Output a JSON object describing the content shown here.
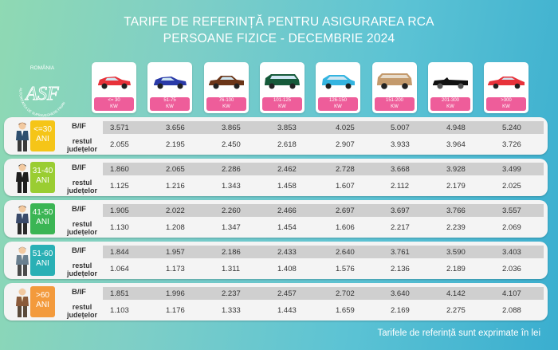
{
  "title_line1": "TARIFE DE REFERINȚĂ PENTRU ASIGURAREA RCA",
  "title_line2": "PERSOANE FIZICE - DECEMBRIE 2024",
  "logo": {
    "top_text": "ROMÂNIA",
    "monogram": "ASF",
    "arc_text": "AUTORITATEA DE SUPRAVEGHERE FINANCIARĂ"
  },
  "unit_kw": "KW",
  "cars": [
    {
      "range": "<= 30",
      "color": "#e8323a",
      "icon": "hatchback-icon"
    },
    {
      "range": "51-75",
      "color": "#2a3aa8",
      "icon": "hatchback-icon"
    },
    {
      "range": "76-100",
      "color": "#6b3518",
      "icon": "sedan-icon"
    },
    {
      "range": "101-125",
      "color": "#165a3a",
      "icon": "minivan-icon"
    },
    {
      "range": "126-150",
      "color": "#34b4e0",
      "icon": "compact-icon"
    },
    {
      "range": "151-200",
      "color": "#c49a6c",
      "icon": "suv-icon"
    },
    {
      "range": "201-300",
      "color": "#111111",
      "icon": "convertible-icon"
    },
    {
      "range": ">300",
      "color": "#e8323a",
      "icon": "sports-car-icon"
    }
  ],
  "range_badge_color": "#ee5d9a",
  "label_bif": "B/IF",
  "label_rest_1": "restul",
  "label_rest_2": "județelor",
  "age_groups": [
    {
      "age": "<=30",
      "unit": "ANI",
      "color": "#f5c518",
      "bif": [
        "3.571",
        "3.656",
        "3.865",
        "3.853",
        "4.025",
        "5.007",
        "4.948",
        "5.240"
      ],
      "rest": [
        "2.055",
        "2.195",
        "2.450",
        "2.618",
        "2.907",
        "3.933",
        "3.964",
        "3.726"
      ]
    },
    {
      "age": "31-40",
      "unit": "ANI",
      "color": "#9acd32",
      "bif": [
        "1.860",
        "2.065",
        "2.286",
        "2.462",
        "2.728",
        "3.668",
        "3.928",
        "3.499"
      ],
      "rest": [
        "1.125",
        "1.216",
        "1.343",
        "1.458",
        "1.607",
        "2.112",
        "2.179",
        "2.025"
      ]
    },
    {
      "age": "41-50",
      "unit": "ANI",
      "color": "#3bb554",
      "bif": [
        "1.905",
        "2.022",
        "2.260",
        "2.466",
        "2.697",
        "3.697",
        "3.766",
        "3.557"
      ],
      "rest": [
        "1.130",
        "1.208",
        "1.347",
        "1.454",
        "1.606",
        "2.217",
        "2.239",
        "2.069"
      ]
    },
    {
      "age": "51-60",
      "unit": "ANI",
      "color": "#2ab0b5",
      "bif": [
        "1.844",
        "1.957",
        "2.186",
        "2.433",
        "2.640",
        "3.761",
        "3.590",
        "3.403"
      ],
      "rest": [
        "1.064",
        "1.173",
        "1.311",
        "1.408",
        "1.576",
        "2.136",
        "2.189",
        "2.036"
      ]
    },
    {
      "age": ">60",
      "unit": "ANI",
      "color": "#f39a3c",
      "bif": [
        "1.851",
        "1.996",
        "2.237",
        "2.457",
        "2.702",
        "3.640",
        "4.142",
        "4.107"
      ],
      "rest": [
        "1.103",
        "1.176",
        "1.333",
        "1.443",
        "1.659",
        "2.169",
        "2.275",
        "2.088"
      ]
    }
  ],
  "footer": "Tarifele de referință sunt exprimate în lei"
}
